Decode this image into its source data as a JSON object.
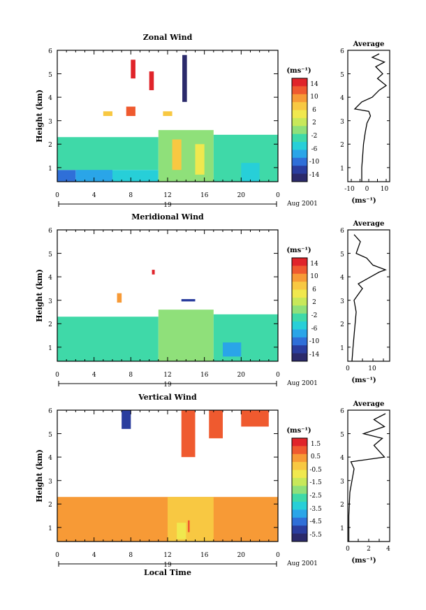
{
  "panels": [
    {
      "title": "Zonal Wind",
      "ylabel": "Height (km)",
      "yticks": [
        "1",
        "2",
        "3",
        "4",
        "5",
        "6"
      ],
      "xticks": [
        "0",
        "4",
        "8",
        "12",
        "16",
        "20",
        "0"
      ],
      "date_day": "19",
      "date_month": "Aug 2001",
      "cbar_unit": "(ms⁻¹)",
      "cbar_labels": [
        "14",
        "10",
        "6",
        "2",
        "-2",
        "-6",
        "-10",
        "-14"
      ],
      "avg_title": "Average",
      "avg_xticks": [
        "-10",
        "0",
        "10"
      ],
      "avg_unit": "(ms⁻¹)"
    },
    {
      "title": "Meridional Wind",
      "ylabel": "Height (km)",
      "yticks": [
        "1",
        "2",
        "3",
        "4",
        "5",
        "6"
      ],
      "xticks": [
        "0",
        "4",
        "8",
        "12",
        "16",
        "20",
        "0"
      ],
      "date_day": "19",
      "date_month": "Aug 2001",
      "cbar_unit": "(ms⁻¹)",
      "cbar_labels": [
        "14",
        "10",
        "6",
        "2",
        "-2",
        "-6",
        "-10",
        "-14"
      ],
      "avg_title": "Average",
      "avg_xticks": [
        "0",
        "10"
      ],
      "avg_unit": "(ms⁻¹)"
    },
    {
      "title": "Vertical Wind",
      "ylabel": "Height (km)",
      "yticks": [
        "1",
        "2",
        "3",
        "4",
        "5",
        "6"
      ],
      "xticks": [
        "0",
        "4",
        "8",
        "12",
        "16",
        "20",
        "0"
      ],
      "date_day": "19",
      "date_month": "Aug 2001",
      "cbar_unit": "(ms⁻¹)",
      "cbar_labels": [
        "1.5",
        "0.5",
        "-0.5",
        "-1.5",
        "-2.5",
        "-3.5",
        "-4.5",
        "-5.5"
      ],
      "avg_title": "Average",
      "avg_xticks": [
        "0",
        "2",
        "4"
      ],
      "avg_unit": "(ms⁻¹)"
    }
  ],
  "xlabel": "Local Time",
  "chart_data": [
    {
      "type": "heatmap",
      "title": "Zonal Wind",
      "x_range_hours": [
        0,
        24
      ],
      "ylim_km": [
        0.4,
        6
      ],
      "color_range": [
        -14,
        14
      ],
      "colorbar_ticks": [
        14,
        10,
        6,
        2,
        -2,
        -6,
        -10,
        -14
      ],
      "background_top_km": 2.3,
      "cells": [
        {
          "t": [
            0,
            2
          ],
          "h": [
            0.4,
            0.9
          ],
          "v": -9
        },
        {
          "t": [
            2,
            6
          ],
          "h": [
            0.4,
            1.0
          ],
          "v": -6
        },
        {
          "t": [
            6,
            11
          ],
          "h": [
            0.4,
            0.9
          ],
          "v": -4
        },
        {
          "t": [
            0,
            11
          ],
          "h": [
            0.9,
            2.3
          ],
          "v": -2
        },
        {
          "t": [
            11,
            17
          ],
          "h": [
            0.4,
            2.6
          ],
          "v": 1
        },
        {
          "t": [
            12.5,
            13.5
          ],
          "h": [
            0.9,
            2.2
          ],
          "v": 6
        },
        {
          "t": [
            15,
            16
          ],
          "h": [
            0.7,
            2.0
          ],
          "v": 5
        },
        {
          "t": [
            17,
            24
          ],
          "h": [
            0.4,
            2.4
          ],
          "v": -2
        },
        {
          "t": [
            20,
            22
          ],
          "h": [
            0.4,
            1.2
          ],
          "v": -5
        },
        {
          "t": [
            7.5,
            8.5
          ],
          "h": [
            3.2,
            3.6
          ],
          "v": 12
        },
        {
          "t": [
            5,
            6
          ],
          "h": [
            3.2,
            3.4
          ],
          "v": 7
        },
        {
          "t": [
            11.5,
            12.5
          ],
          "h": [
            3.2,
            3.4
          ],
          "v": 6
        },
        {
          "t": [
            8,
            8.5
          ],
          "h": [
            4.8,
            5.6
          ],
          "v": 14
        },
        {
          "t": [
            10,
            10.5
          ],
          "h": [
            4.3,
            5.1
          ],
          "v": 14
        },
        {
          "t": [
            13.6,
            14.1
          ],
          "h": [
            3.8,
            5.8
          ],
          "v": -14
        }
      ],
      "average_profile": {
        "x_range": [
          -12,
          12
        ],
        "points": [
          [
            -4,
            0.4
          ],
          [
            -4,
            1.0
          ],
          [
            -3.5,
            1.5
          ],
          [
            -3,
            2.0
          ],
          [
            -2,
            2.5
          ],
          [
            -1,
            2.9
          ],
          [
            1,
            3.2
          ],
          [
            0,
            3.4
          ],
          [
            -8,
            3.5
          ],
          [
            -4,
            3.8
          ],
          [
            2,
            4.0
          ],
          [
            6,
            4.3
          ],
          [
            10,
            4.5
          ],
          [
            5,
            4.8
          ],
          [
            8,
            5.0
          ],
          [
            4,
            5.3
          ],
          [
            9,
            5.5
          ],
          [
            2,
            5.7
          ],
          [
            6,
            5.85
          ]
        ]
      }
    },
    {
      "type": "heatmap",
      "title": "Meridional Wind",
      "x_range_hours": [
        0,
        24
      ],
      "ylim_km": [
        0.4,
        6
      ],
      "color_range": [
        -14,
        14
      ],
      "colorbar_ticks": [
        14,
        10,
        6,
        2,
        -2,
        -6,
        -10,
        -14
      ],
      "background_top_km": 2.3,
      "cells": [
        {
          "t": [
            0,
            11
          ],
          "h": [
            0.4,
            2.3
          ],
          "v": -2
        },
        {
          "t": [
            11,
            17
          ],
          "h": [
            0.4,
            2.6
          ],
          "v": 0
        },
        {
          "t": [
            17,
            24
          ],
          "h": [
            0.4,
            2.4
          ],
          "v": -3
        },
        {
          "t": [
            18,
            20
          ],
          "h": [
            0.6,
            1.2
          ],
          "v": -6
        },
        {
          "t": [
            6.5,
            7
          ],
          "h": [
            2.9,
            3.3
          ],
          "v": 10
        },
        {
          "t": [
            13.5,
            15
          ],
          "h": [
            2.95,
            3.05
          ],
          "v": -12
        },
        {
          "t": [
            10.3,
            10.6
          ],
          "h": [
            4.1,
            4.3
          ],
          "v": 14
        }
      ],
      "average_profile": {
        "x_range": [
          -2,
          18
        ],
        "points": [
          [
            0,
            0.4
          ],
          [
            0.5,
            1.0
          ],
          [
            1,
            1.5
          ],
          [
            1.5,
            2.0
          ],
          [
            2,
            2.5
          ],
          [
            1,
            3.0
          ],
          [
            5,
            3.5
          ],
          [
            3,
            3.7
          ],
          [
            9,
            4.0
          ],
          [
            13,
            4.2
          ],
          [
            16,
            4.3
          ],
          [
            10,
            4.5
          ],
          [
            7,
            4.8
          ],
          [
            2,
            5.0
          ],
          [
            4,
            5.5
          ],
          [
            1,
            5.8
          ]
        ]
      }
    },
    {
      "type": "heatmap",
      "title": "Vertical Wind",
      "x_range_hours": [
        0,
        24
      ],
      "ylim_km": [
        0.4,
        6
      ],
      "color_range": [
        -6,
        2
      ],
      "colorbar_ticks": [
        1.5,
        0.5,
        -0.5,
        -1.5,
        -2.5,
        -3.5,
        -4.5,
        -5.5
      ],
      "background_top_km": 2.3,
      "cells": [
        {
          "t": [
            0,
            24
          ],
          "h": [
            0.4,
            2.3
          ],
          "v": 0.4
        },
        {
          "t": [
            0,
            12
          ],
          "h": [
            0.4,
            1.2
          ],
          "v": 0.6
        },
        {
          "t": [
            12,
            17
          ],
          "h": [
            0.4,
            2.3
          ],
          "v": 0.2
        },
        {
          "t": [
            13,
            14
          ],
          "h": [
            0.5,
            1.2
          ],
          "v": -0.8
        },
        {
          "t": [
            14.2,
            14.4
          ],
          "h": [
            0.8,
            1.3
          ],
          "v": 1.5
        },
        {
          "t": [
            13.5,
            15
          ],
          "h": [
            4.0,
            6.0
          ],
          "v": 1.6
        },
        {
          "t": [
            16.5,
            18
          ],
          "h": [
            4.8,
            6.0
          ],
          "v": 1.6
        },
        {
          "t": [
            20,
            23
          ],
          "h": [
            5.3,
            6.0
          ],
          "v": 1.6
        },
        {
          "t": [
            7,
            8
          ],
          "h": [
            5.2,
            6.0
          ],
          "v": -5.5
        }
      ],
      "average_profile": {
        "x_range": [
          0,
          4
        ],
        "points": [
          [
            0.1,
            0.4
          ],
          [
            0.1,
            1.5
          ],
          [
            0.2,
            2.5
          ],
          [
            0.6,
            3.5
          ],
          [
            0.3,
            3.8
          ],
          [
            3.5,
            4.0
          ],
          [
            2.5,
            4.5
          ],
          [
            3.3,
            4.8
          ],
          [
            1.5,
            5.0
          ],
          [
            3.5,
            5.3
          ],
          [
            2.5,
            5.6
          ],
          [
            3.6,
            5.85
          ]
        ]
      }
    }
  ]
}
